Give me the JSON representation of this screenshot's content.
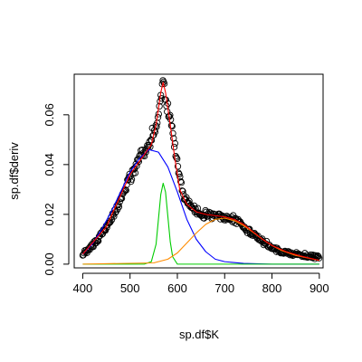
{
  "chart_data": {
    "type": "scatter",
    "title": "",
    "xlabel": "sp.df$K",
    "ylabel": "sp.df$deriv",
    "xlim": [
      382,
      908
    ],
    "ylim": [
      -0.0015,
      0.0763
    ],
    "x_ticks": [
      400,
      500,
      600,
      700,
      800,
      900
    ],
    "x_tick_labels": [
      "400",
      "500",
      "600",
      "700",
      "800",
      "900"
    ],
    "y_ticks": [
      0.0,
      0.02,
      0.04,
      0.06
    ],
    "y_tick_labels": [
      "0.00",
      "0.02",
      "0.04",
      "0.06"
    ],
    "grid": false,
    "legend": "none",
    "point_style": "open-circle",
    "point_color": "#000000",
    "scatter_profile": [
      [
        400,
        0.004
      ],
      [
        420,
        0.0075
      ],
      [
        440,
        0.012
      ],
      [
        460,
        0.018
      ],
      [
        480,
        0.026
      ],
      [
        500,
        0.034
      ],
      [
        520,
        0.043
      ],
      [
        540,
        0.048
      ],
      [
        555,
        0.055
      ],
      [
        565,
        0.066
      ],
      [
        570,
        0.072
      ],
      [
        575,
        0.068
      ],
      [
        585,
        0.058
      ],
      [
        600,
        0.04
      ],
      [
        615,
        0.026
      ],
      [
        630,
        0.023
      ],
      [
        650,
        0.02
      ],
      [
        670,
        0.0195
      ],
      [
        690,
        0.019
      ],
      [
        710,
        0.0185
      ],
      [
        730,
        0.017
      ],
      [
        760,
        0.012
      ],
      [
        790,
        0.008
      ],
      [
        820,
        0.005
      ],
      [
        850,
        0.004
      ],
      [
        880,
        0.003
      ],
      [
        900,
        0.003
      ]
    ],
    "series": [
      {
        "color": "#0000ff",
        "style": "line",
        "x": [
          400,
          420,
          440,
          460,
          480,
          500,
          520,
          540,
          560,
          580,
          600,
          620,
          640,
          660,
          680,
          700,
          740,
          800,
          900
        ],
        "y": [
          0.004,
          0.008,
          0.014,
          0.021,
          0.029,
          0.037,
          0.0425,
          0.046,
          0.045,
          0.039,
          0.029,
          0.018,
          0.01,
          0.005,
          0.002,
          0.001,
          0.0003,
          0.0,
          0.0
        ]
      },
      {
        "color": "#00cc00",
        "style": "line",
        "x": [
          400,
          530,
          545,
          555,
          560,
          565,
          570,
          575,
          580,
          585,
          590,
          600,
          900
        ],
        "y": [
          0.0,
          0.0,
          0.001,
          0.008,
          0.018,
          0.028,
          0.0325,
          0.029,
          0.019,
          0.009,
          0.003,
          0.0,
          0.0
        ]
      },
      {
        "color": "#ff8c00",
        "style": "line",
        "x": [
          400,
          550,
          580,
          600,
          620,
          640,
          660,
          680,
          700,
          720,
          740,
          760,
          780,
          800,
          820,
          850,
          900
        ],
        "y": [
          0.0,
          0.0005,
          0.002,
          0.0045,
          0.0085,
          0.0125,
          0.016,
          0.018,
          0.0185,
          0.0175,
          0.0155,
          0.0128,
          0.01,
          0.0075,
          0.0055,
          0.0035,
          0.0015
        ]
      },
      {
        "color": "#ff0000",
        "style": "line",
        "x": [
          400,
          450,
          500,
          530,
          545,
          555,
          565,
          570,
          575,
          585,
          595,
          605,
          620,
          640,
          660,
          680,
          700,
          720,
          740,
          760,
          780,
          800,
          830,
          860,
          900
        ],
        "y": [
          0.004,
          0.015,
          0.036,
          0.044,
          0.048,
          0.056,
          0.069,
          0.073,
          0.069,
          0.056,
          0.042,
          0.03,
          0.024,
          0.021,
          0.02,
          0.0195,
          0.019,
          0.018,
          0.016,
          0.013,
          0.01,
          0.0075,
          0.005,
          0.0033,
          0.0015
        ]
      }
    ]
  }
}
